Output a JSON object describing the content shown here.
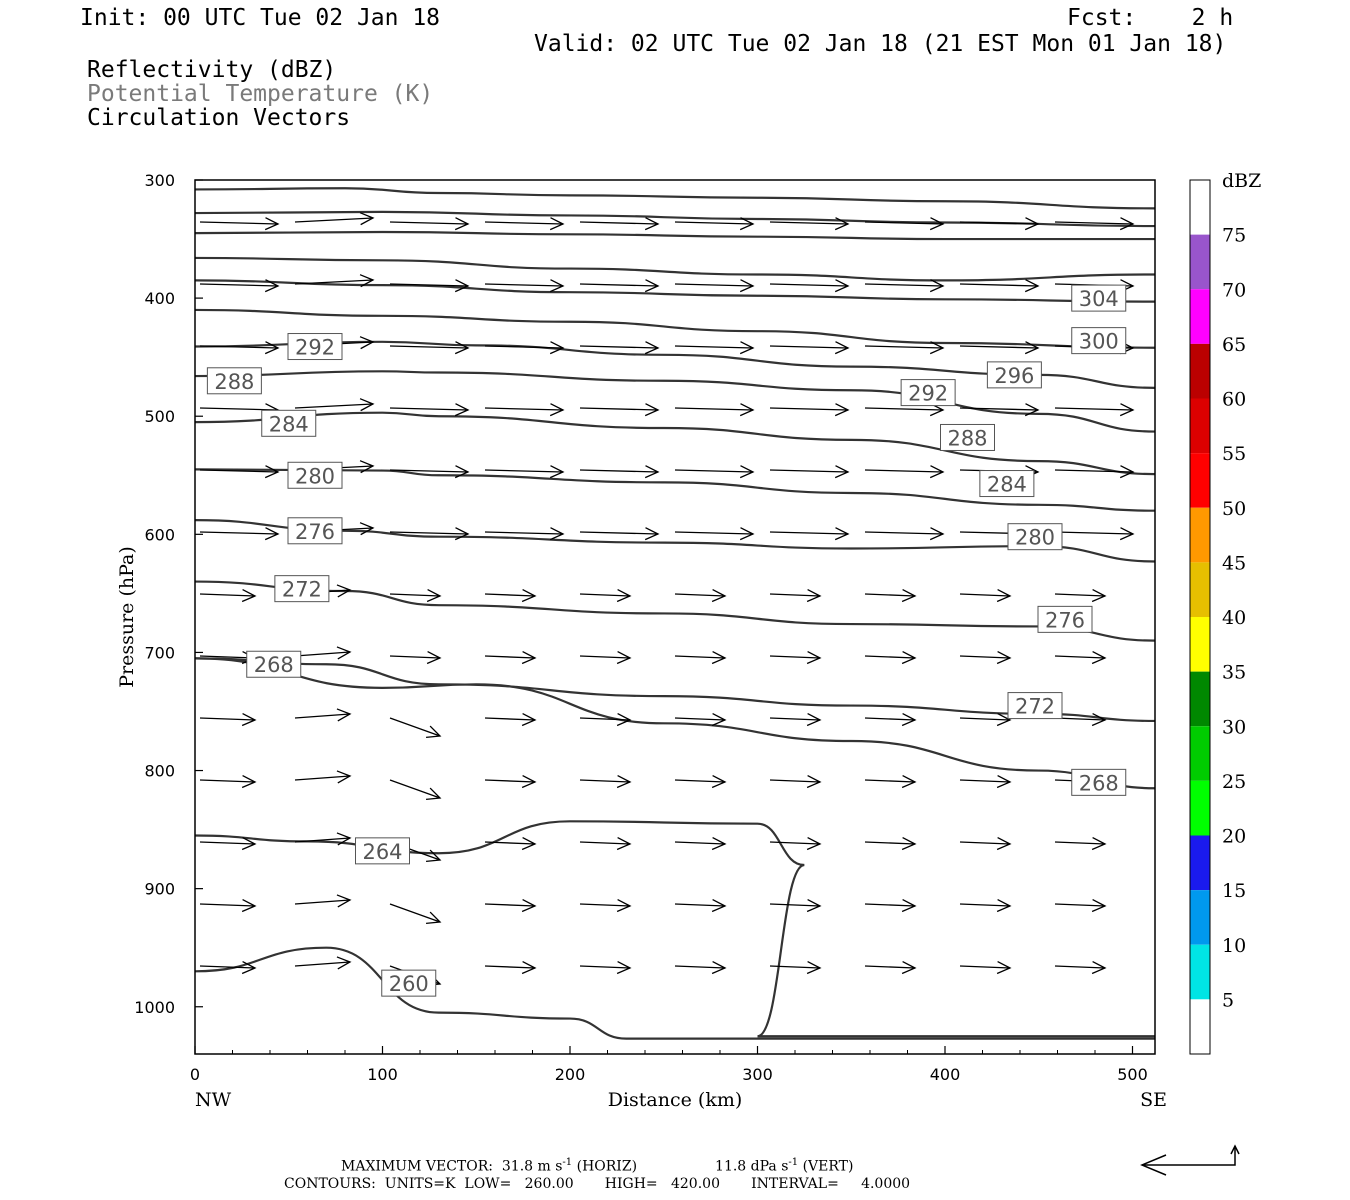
{
  "header": {
    "init": "Init: 00 UTC Tue 02 Jan 18",
    "fcst": "Fcst:    2 h",
    "valid": "Valid: 02 UTC Tue 02 Jan 18 (21 EST Mon 01 Jan 18)",
    "fields": [
      "Reflectivity (dBZ)",
      "Potential Temperature (K)",
      "Circulation Vectors"
    ]
  },
  "footer": {
    "max_vector_prefix": "MAXIMUM VECTOR:  31.8 m s",
    "horiz_suffix": " (HORIZ)",
    "vert_prefix": "11.8 dPa s",
    "vert_suffix": " (VERT)",
    "exponent": "-1",
    "contours_line": "CONTOURS:  UNITS=K  LOW=   260.00       HIGH=   420.00       INTERVAL=     4.0000"
  },
  "chart_data": {
    "type": "line",
    "title": "",
    "xlabel": "Distance (km)",
    "ylabel": "Pressure (hPa)",
    "xlim": [
      0,
      512
    ],
    "ylim": [
      1040,
      300
    ],
    "x_ticks": [
      0,
      100,
      200,
      300,
      400,
      500
    ],
    "y_ticks": [
      300,
      400,
      500,
      600,
      700,
      800,
      900,
      1000
    ],
    "x_end_labels": {
      "left": "NW",
      "right": "SE"
    },
    "colorbar": {
      "unit": "dBZ",
      "ticks": [
        5,
        10,
        15,
        20,
        25,
        30,
        35,
        40,
        45,
        50,
        55,
        60,
        65,
        70,
        75
      ],
      "colors": [
        "#ffffff",
        "#00e5e5",
        "#0099ee",
        "#1a1aee",
        "#00ff00",
        "#00cc00",
        "#008800",
        "#ffff00",
        "#e6bf00",
        "#ff9900",
        "#ff0000",
        "#dd0000",
        "#bb0000",
        "#ff00ff",
        "#9955cc",
        "#ffffff"
      ]
    },
    "contour_labels": [
      {
        "value": "304",
        "x": 482,
        "p": 400
      },
      {
        "value": "300",
        "x": 482,
        "p": 436
      },
      {
        "value": "296",
        "x": 437,
        "p": 465
      },
      {
        "value": "292",
        "x": 64,
        "p": 441
      },
      {
        "value": "292",
        "x": 391,
        "p": 480
      },
      {
        "value": "288",
        "x": 21,
        "p": 470
      },
      {
        "value": "288",
        "x": 412,
        "p": 518
      },
      {
        "value": "284",
        "x": 50,
        "p": 506
      },
      {
        "value": "284",
        "x": 433,
        "p": 557
      },
      {
        "value": "280",
        "x": 64,
        "p": 550
      },
      {
        "value": "280",
        "x": 448,
        "p": 602
      },
      {
        "value": "276",
        "x": 64,
        "p": 597
      },
      {
        "value": "276",
        "x": 464,
        "p": 672
      },
      {
        "value": "272",
        "x": 57,
        "p": 646
      },
      {
        "value": "272",
        "x": 448,
        "p": 745
      },
      {
        "value": "268",
        "x": 42,
        "p": 710
      },
      {
        "value": "268",
        "x": 482,
        "p": 810
      },
      {
        "value": "264",
        "x": 100,
        "p": 868
      },
      {
        "value": "260",
        "x": 114,
        "p": 980
      }
    ],
    "contours": [
      {
        "value": 308,
        "points": [
          [
            0,
            308
          ],
          [
            80,
            307
          ],
          [
            130,
            311
          ],
          [
            200,
            313
          ],
          [
            300,
            315
          ],
          [
            400,
            318
          ],
          [
            512,
            324
          ]
        ]
      },
      {
        "value": 306,
        "points": [
          [
            0,
            328
          ],
          [
            100,
            327
          ],
          [
            200,
            330
          ],
          [
            300,
            333
          ],
          [
            400,
            336
          ],
          [
            512,
            339
          ]
        ]
      },
      {
        "value": 305,
        "points": [
          [
            0,
            345
          ],
          [
            100,
            344
          ],
          [
            200,
            346
          ],
          [
            300,
            348
          ],
          [
            400,
            350
          ],
          [
            512,
            350
          ]
        ]
      },
      {
        "value": 304,
        "points": [
          [
            0,
            366
          ],
          [
            100,
            368
          ],
          [
            200,
            375
          ],
          [
            300,
            380
          ],
          [
            400,
            385
          ],
          [
            512,
            380
          ]
        ]
      },
      {
        "value": 303,
        "points": [
          [
            0,
            385
          ],
          [
            100,
            389
          ],
          [
            200,
            395
          ],
          [
            300,
            398
          ],
          [
            400,
            401
          ],
          [
            512,
            403
          ]
        ]
      },
      {
        "value": 300,
        "points": [
          [
            0,
            410
          ],
          [
            100,
            415
          ],
          [
            200,
            420
          ],
          [
            300,
            428
          ],
          [
            400,
            438
          ],
          [
            512,
            442
          ]
        ]
      },
      {
        "value": 296,
        "points": [
          [
            0,
            441
          ],
          [
            100,
            437
          ],
          [
            150,
            440
          ],
          [
            250,
            448
          ],
          [
            350,
            458
          ],
          [
            450,
            465
          ],
          [
            512,
            476
          ]
        ]
      },
      {
        "value": 292,
        "points": [
          [
            0,
            466
          ],
          [
            100,
            462
          ],
          [
            130,
            463
          ],
          [
            250,
            470
          ],
          [
            350,
            478
          ],
          [
            450,
            498
          ],
          [
            512,
            513
          ]
        ]
      },
      {
        "value": 288,
        "points": [
          [
            0,
            505
          ],
          [
            100,
            497
          ],
          [
            130,
            500
          ],
          [
            250,
            510
          ],
          [
            350,
            520
          ],
          [
            450,
            538
          ],
          [
            512,
            549
          ]
        ]
      },
      {
        "value": 284,
        "points": [
          [
            0,
            545
          ],
          [
            100,
            546
          ],
          [
            130,
            550
          ],
          [
            250,
            556
          ],
          [
            350,
            565
          ],
          [
            450,
            575
          ],
          [
            512,
            580
          ]
        ]
      },
      {
        "value": 280,
        "points": [
          [
            0,
            588
          ],
          [
            80,
            597
          ],
          [
            130,
            602
          ],
          [
            250,
            607
          ],
          [
            350,
            612
          ],
          [
            450,
            610
          ],
          [
            512,
            623
          ]
        ]
      },
      {
        "value": 276,
        "points": [
          [
            0,
            640
          ],
          [
            80,
            648
          ],
          [
            130,
            660
          ],
          [
            250,
            667
          ],
          [
            350,
            676
          ],
          [
            450,
            678
          ],
          [
            512,
            690
          ]
        ]
      },
      {
        "value": 272,
        "points": [
          [
            0,
            705
          ],
          [
            70,
            710
          ],
          [
            130,
            727
          ],
          [
            250,
            737
          ],
          [
            350,
            745
          ],
          [
            450,
            752
          ],
          [
            512,
            758
          ]
        ]
      },
      {
        "value": 268,
        "points": [
          [
            0,
            705
          ],
          [
            100,
            730
          ],
          [
            150,
            727
          ],
          [
            250,
            760
          ],
          [
            350,
            775
          ],
          [
            450,
            800
          ],
          [
            512,
            815
          ]
        ]
      },
      {
        "value": 264,
        "points": [
          [
            0,
            855
          ],
          [
            60,
            860
          ],
          [
            130,
            870
          ],
          [
            200,
            843
          ],
          [
            300,
            845
          ],
          [
            325,
            880
          ],
          [
            300,
            1025
          ],
          [
            512,
            1025
          ]
        ]
      },
      {
        "value": 260,
        "points": [
          [
            0,
            970
          ],
          [
            70,
            950
          ],
          [
            130,
            1005
          ],
          [
            200,
            1010
          ],
          [
            230,
            1027
          ],
          [
            512,
            1027
          ]
        ]
      }
    ]
  }
}
